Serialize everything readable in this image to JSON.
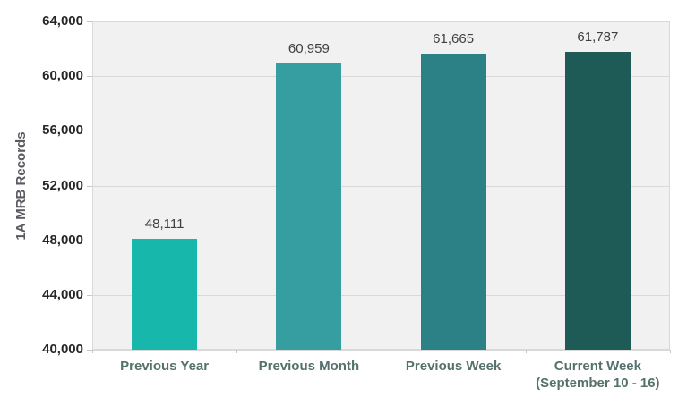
{
  "chart_data": {
    "type": "bar",
    "title": "",
    "ylabel": "1A MRB Records",
    "xlabel": "",
    "categories": [
      "Previous Year",
      "Previous Month",
      "Previous Week",
      "Current Week\n(September 10 - 16)"
    ],
    "values": [
      48111,
      60959,
      61665,
      61787
    ],
    "value_labels": [
      "48,111",
      "60,959",
      "61,665",
      "61,787"
    ],
    "ylim": [
      40000,
      64000
    ],
    "ytick_step": 4000,
    "ytick_labels": [
      "40,000",
      "44,000",
      "48,000",
      "52,000",
      "56,000",
      "60,000",
      "64,000"
    ],
    "grid": true,
    "legend": false,
    "bar_colors": [
      "#18b7ac",
      "#369da0",
      "#2b8186",
      "#1e5b57"
    ],
    "colors": {
      "plot_background": "#f1f1f1",
      "gridline": "#d9d9d9",
      "tick_mark": "#c6c6c6",
      "axis_tick_label": "#262626",
      "category_label": "#54716c",
      "value_label": "#3f3f3f",
      "ylabel_color": "#5b5860"
    }
  }
}
